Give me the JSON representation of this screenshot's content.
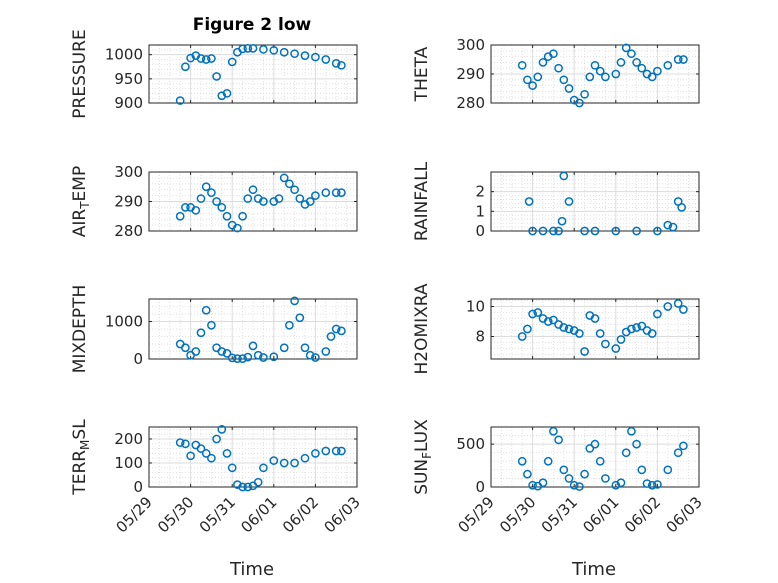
{
  "figure": {
    "title": "Figure 2 low",
    "marker_color": "#0072BD"
  },
  "xaxis": {
    "label": "Time",
    "ticks": [
      {
        "label": "05/29",
        "day": 0
      },
      {
        "label": "05/30",
        "day": 1
      },
      {
        "label": "05/31",
        "day": 2
      },
      {
        "label": "06/01",
        "day": 3
      },
      {
        "label": "06/02",
        "day": 4
      },
      {
        "label": "06/03",
        "day": 5
      }
    ],
    "xlim": [
      0,
      5
    ]
  },
  "chart_data": [
    {
      "type": "scatter",
      "title": "Figure 2 low",
      "ylabel": "PRESSURE",
      "ylim": [
        900,
        1020
      ],
      "yticks": [
        900,
        950,
        1000
      ],
      "ytick_labels": [
        "900",
        "950",
        "1000"
      ],
      "grid": true,
      "x": [
        "05/29 18:00",
        "05/29 21:00",
        "05/30 00:00",
        "05/30 03:00",
        "05/30 06:00",
        "05/30 09:00",
        "05/30 12:00",
        "05/30 15:00",
        "05/30 18:00",
        "05/30 21:00",
        "05/31 00:00",
        "05/31 03:00",
        "05/31 06:00",
        "05/31 09:00",
        "05/31 12:00",
        "05/31 18:00",
        "06/01 00:00",
        "06/01 06:00",
        "06/01 12:00",
        "06/01 18:00",
        "06/02 00:00",
        "06/02 06:00",
        "06/02 12:00",
        "06/02 15:00"
      ],
      "y": [
        905,
        975,
        993,
        998,
        992,
        990,
        992,
        955,
        915,
        920,
        985,
        1005,
        1012,
        1013,
        1013,
        1011,
        1009,
        1005,
        1002,
        998,
        995,
        990,
        982,
        978
      ]
    },
    {
      "type": "scatter",
      "ylabel": "THETA",
      "ylim": [
        280,
        300
      ],
      "yticks": [
        280,
        290,
        300
      ],
      "ytick_labels": [
        "280",
        "290",
        "300"
      ],
      "grid": true,
      "x": [
        "05/29 18:00",
        "05/29 21:00",
        "05/30 00:00",
        "05/30 03:00",
        "05/30 06:00",
        "05/30 09:00",
        "05/30 12:00",
        "05/30 15:00",
        "05/30 18:00",
        "05/30 21:00",
        "05/31 00:00",
        "05/31 03:00",
        "05/31 06:00",
        "05/31 09:00",
        "05/31 12:00",
        "05/31 15:00",
        "05/31 18:00",
        "06/01 00:00",
        "06/01 03:00",
        "06/01 06:00",
        "06/01 09:00",
        "06/01 12:00",
        "06/01 15:00",
        "06/01 18:00",
        "06/01 21:00",
        "06/02 00:00",
        "06/02 06:00",
        "06/02 12:00",
        "06/02 15:00"
      ],
      "y": [
        293,
        288,
        286,
        289,
        294,
        296,
        297,
        292,
        288,
        285,
        281,
        280,
        283,
        289,
        293,
        291,
        289,
        290,
        294,
        299,
        297,
        294,
        292,
        290,
        289,
        291,
        293,
        295,
        295
      ]
    },
    {
      "type": "scatter",
      "ylabel": "AIR_TEMP",
      "ylim": [
        280,
        300
      ],
      "yticks": [
        280,
        290,
        300
      ],
      "ytick_labels": [
        "280",
        "290",
        "300"
      ],
      "grid": true,
      "x": [
        "05/29 18:00",
        "05/29 21:00",
        "05/30 00:00",
        "05/30 03:00",
        "05/30 06:00",
        "05/30 09:00",
        "05/30 12:00",
        "05/30 15:00",
        "05/30 18:00",
        "05/30 21:00",
        "05/31 00:00",
        "05/31 03:00",
        "05/31 06:00",
        "05/31 09:00",
        "05/31 12:00",
        "05/31 15:00",
        "05/31 18:00",
        "06/01 00:00",
        "06/01 03:00",
        "06/01 06:00",
        "06/01 09:00",
        "06/01 12:00",
        "06/01 15:00",
        "06/01 18:00",
        "06/01 21:00",
        "06/02 00:00",
        "06/02 06:00",
        "06/02 12:00",
        "06/02 15:00"
      ],
      "y": [
        285,
        288,
        288,
        287,
        291,
        295,
        293,
        290,
        288,
        285,
        282,
        281,
        285,
        291,
        294,
        291,
        290,
        290,
        291,
        298,
        296,
        294,
        291,
        289,
        290,
        292,
        293,
        293,
        293
      ]
    },
    {
      "type": "scatter",
      "ylabel": "RAINFALL",
      "ylim": [
        0,
        3
      ],
      "yticks": [
        0,
        1,
        2
      ],
      "ytick_labels": [
        "0",
        "1",
        "2"
      ],
      "grid": true,
      "x": [
        "05/29 22:00",
        "05/30 00:00",
        "05/30 06:00",
        "05/30 12:00",
        "05/30 15:00",
        "05/30 17:00",
        "05/30 18:00",
        "05/30 21:00",
        "05/31 06:00",
        "05/31 12:00",
        "06/01 00:00",
        "06/01 12:00",
        "06/02 00:00",
        "06/02 06:00",
        "06/02 09:00",
        "06/02 12:00",
        "06/02 14:00"
      ],
      "y": [
        1.5,
        0,
        0,
        0,
        0,
        0.5,
        2.8,
        1.5,
        0,
        0,
        0,
        0,
        0,
        0.3,
        0.2,
        1.5,
        1.2
      ]
    },
    {
      "type": "scatter",
      "ylabel": "MIXDEPTH",
      "ylim": [
        0,
        1600
      ],
      "yticks": [
        0,
        1000
      ],
      "ytick_labels": [
        "0",
        "1000"
      ],
      "grid": true,
      "x": [
        "05/29 18:00",
        "05/29 21:00",
        "05/30 00:00",
        "05/30 03:00",
        "05/30 06:00",
        "05/30 09:00",
        "05/30 12:00",
        "05/30 15:00",
        "05/30 18:00",
        "05/30 21:00",
        "05/31 00:00",
        "05/31 03:00",
        "05/31 06:00",
        "05/31 09:00",
        "05/31 12:00",
        "05/31 15:00",
        "05/31 18:00",
        "06/01 00:00",
        "06/01 06:00",
        "06/01 09:00",
        "06/01 12:00",
        "06/01 15:00",
        "06/01 18:00",
        "06/01 21:00",
        "06/02 00:00",
        "06/02 06:00",
        "06/02 09:00",
        "06/02 12:00",
        "06/02 15:00"
      ],
      "y": [
        400,
        300,
        100,
        200,
        700,
        1300,
        900,
        300,
        200,
        150,
        30,
        10,
        10,
        50,
        350,
        100,
        40,
        60,
        300,
        900,
        1550,
        1100,
        300,
        100,
        40,
        200,
        600,
        800,
        750
      ]
    },
    {
      "type": "scatter",
      "ylabel": "H2OMIXRA",
      "ylim": [
        6.5,
        10.5
      ],
      "yticks": [
        8,
        10
      ],
      "ytick_labels": [
        "8",
        "10"
      ],
      "grid": true,
      "x": [
        "05/29 18:00",
        "05/29 21:00",
        "05/30 00:00",
        "05/30 03:00",
        "05/30 06:00",
        "05/30 09:00",
        "05/30 12:00",
        "05/30 15:00",
        "05/30 18:00",
        "05/30 21:00",
        "05/31 00:00",
        "05/31 03:00",
        "05/31 06:00",
        "05/31 09:00",
        "05/31 12:00",
        "05/31 15:00",
        "05/31 18:00",
        "06/01 00:00",
        "06/01 03:00",
        "06/01 06:00",
        "06/01 09:00",
        "06/01 12:00",
        "06/01 15:00",
        "06/01 18:00",
        "06/01 21:00",
        "06/02 00:00",
        "06/02 06:00",
        "06/02 12:00",
        "06/02 15:00"
      ],
      "y": [
        8.0,
        8.5,
        9.5,
        9.6,
        9.2,
        9.0,
        9.1,
        8.8,
        8.6,
        8.5,
        8.4,
        8.2,
        7.0,
        9.4,
        9.2,
        8.2,
        7.5,
        7.2,
        7.8,
        8.3,
        8.5,
        8.6,
        8.7,
        8.4,
        8.2,
        9.5,
        10.0,
        10.2,
        9.8
      ]
    },
    {
      "type": "scatter",
      "ylabel": "TERR_MSL",
      "ylim": [
        0,
        250
      ],
      "yticks": [
        0,
        100,
        200
      ],
      "ytick_labels": [
        "0",
        "100",
        "200"
      ],
      "grid": true,
      "x": [
        "05/29 18:00",
        "05/29 21:00",
        "05/30 00:00",
        "05/30 03:00",
        "05/30 06:00",
        "05/30 09:00",
        "05/30 12:00",
        "05/30 15:00",
        "05/30 18:00",
        "05/30 21:00",
        "05/31 00:00",
        "05/31 03:00",
        "05/31 06:00",
        "05/31 09:00",
        "05/31 12:00",
        "05/31 15:00",
        "05/31 18:00",
        "06/01 00:00",
        "06/01 06:00",
        "06/01 12:00",
        "06/01 18:00",
        "06/02 00:00",
        "06/02 06:00",
        "06/02 12:00",
        "06/02 15:00"
      ],
      "y": [
        185,
        180,
        130,
        175,
        160,
        140,
        120,
        200,
        240,
        140,
        80,
        10,
        0,
        0,
        5,
        20,
        80,
        110,
        100,
        100,
        120,
        140,
        150,
        150,
        150
      ]
    },
    {
      "type": "scatter",
      "ylabel": "SUN_FLUX",
      "ylim": [
        0,
        700
      ],
      "yticks": [
        0,
        500
      ],
      "ytick_labels": [
        "0",
        "500"
      ],
      "grid": true,
      "x": [
        "05/29 18:00",
        "05/29 21:00",
        "05/30 00:00",
        "05/30 03:00",
        "05/30 06:00",
        "05/30 09:00",
        "05/30 12:00",
        "05/30 15:00",
        "05/30 18:00",
        "05/30 21:00",
        "05/31 00:00",
        "05/31 03:00",
        "05/31 06:00",
        "05/31 09:00",
        "05/31 12:00",
        "05/31 15:00",
        "05/31 18:00",
        "06/01 00:00",
        "06/01 03:00",
        "06/01 06:00",
        "06/01 09:00",
        "06/01 12:00",
        "06/01 15:00",
        "06/01 18:00",
        "06/01 21:00",
        "06/02 00:00",
        "06/02 06:00",
        "06/02 12:00",
        "06/02 15:00"
      ],
      "y": [
        300,
        150,
        20,
        10,
        50,
        300,
        650,
        550,
        200,
        100,
        20,
        5,
        150,
        450,
        500,
        300,
        100,
        20,
        50,
        400,
        650,
        500,
        200,
        40,
        20,
        30,
        200,
        400,
        480
      ]
    }
  ]
}
